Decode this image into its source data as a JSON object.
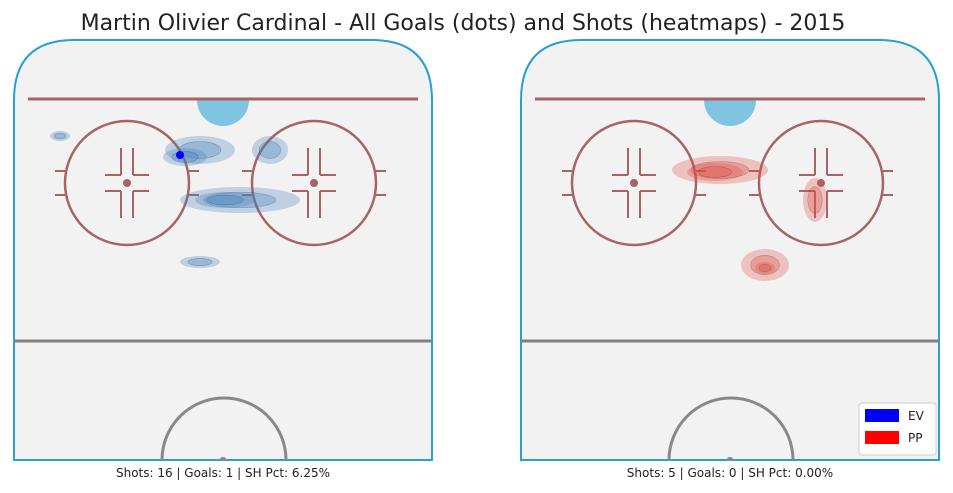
{
  "title": "Martin Olivier Cardinal - All Goals (dots) and Shots (heatmaps) - 2015",
  "panels": [
    {
      "caption": "Shots: 16 | Goals: 1 | SH Pct: 6.25%"
    },
    {
      "caption": "Shots: 5 | Goals: 0 | SH Pct: 0.00%"
    }
  ],
  "legend": [
    {
      "name": "EV",
      "color": "#0000ff"
    },
    {
      "name": "PP",
      "color": "#ff0000"
    }
  ]
}
